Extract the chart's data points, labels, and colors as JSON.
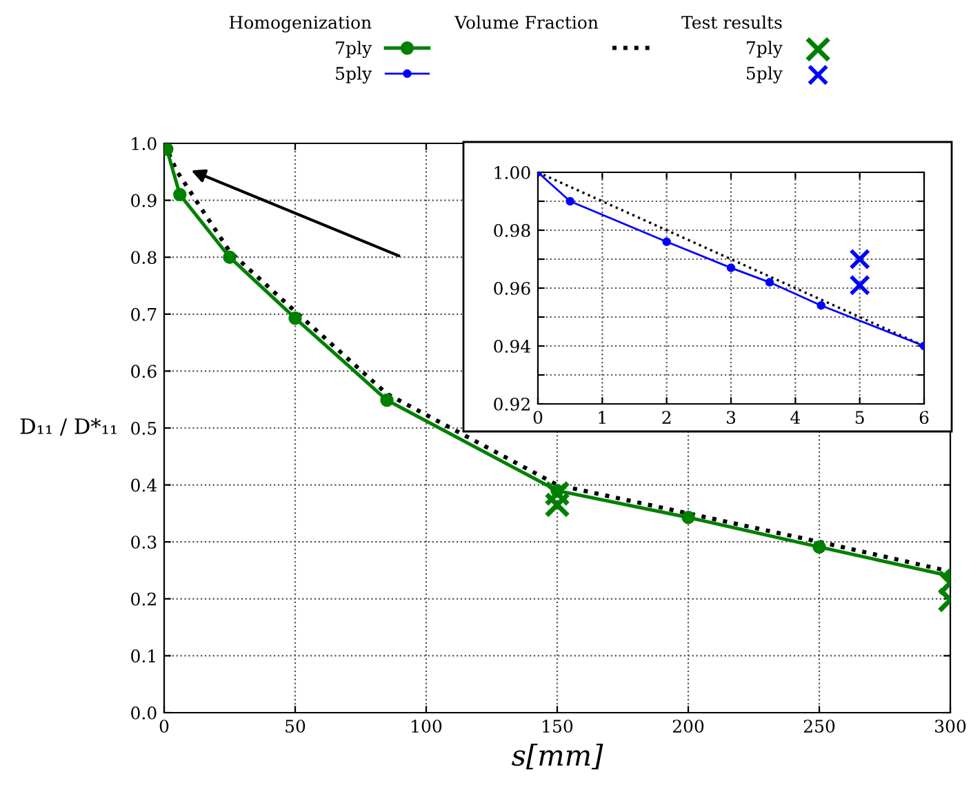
{
  "chart_data": [
    {
      "type": "line",
      "xlabel": "s[mm]",
      "ylabel": "D₁₁ / D*₁₁",
      "xlim": [
        0,
        300
      ],
      "ylim": [
        0,
        1.0
      ],
      "xticks": [
        0,
        50,
        100,
        150,
        200,
        250,
        300
      ],
      "yticks": [
        {
          "value": 0,
          "label": "0.0"
        },
        0.1,
        0.2,
        0.3,
        0.4,
        0.5,
        0.6,
        0.7,
        0.8,
        0.9,
        {
          "value": 1.0,
          "label": "1.0"
        }
      ],
      "grid": true,
      "legend": "top",
      "annotations": [
        "Homogenization",
        "Volume Fraction",
        "Test results"
      ],
      "series": [
        {
          "name": "7ply",
          "color": "#008000",
          "marker": "circle",
          "line_style": "solid",
          "x": [
            1,
            6,
            25,
            50,
            85,
            150,
            200,
            250,
            300
          ],
          "values": [
            0.99,
            0.91,
            0.8,
            0.693,
            0.549,
            0.39,
            0.343,
            0.291,
            0.24
          ]
        },
        {
          "color": "#000000",
          "marker": "none",
          "line_style": "dotted",
          "x": [
            0,
            5,
            25,
            50,
            85,
            150,
            200,
            250,
            300
          ],
          "values": [
            1.0,
            0.95,
            0.81,
            0.705,
            0.56,
            0.4,
            0.35,
            0.3,
            0.248
          ]
        },
        {
          "type": "scatter",
          "name": "7ply",
          "color": "#008000",
          "marker": "cross",
          "x": [
            150,
            150,
            300,
            300
          ],
          "values": [
            0.385,
            0.365,
            0.228,
            0.198
          ]
        }
      ]
    },
    {
      "type": "line",
      "xlim": [
        0,
        6
      ],
      "ylim": [
        0.92,
        1.0
      ],
      "xticks": [
        0,
        1,
        2,
        3,
        4,
        5,
        6
      ],
      "yticks": [
        {
          "value": 0.92,
          "label": "0.92"
        },
        {
          "value": 0.93,
          "label": null
        },
        {
          "value": 0.94,
          "label": "0.94"
        },
        {
          "value": 0.95,
          "label": null
        },
        {
          "value": 0.96,
          "label": "0.96"
        },
        {
          "value": 0.97,
          "label": null
        },
        {
          "value": 0.98,
          "label": "0.98"
        },
        {
          "value": 0.99,
          "label": null
        },
        {
          "value": 1.0,
          "label": "1.00"
        }
      ],
      "grid": true,
      "series": [
        {
          "name": "5ply",
          "color": "#0000ff",
          "marker": "circle",
          "line_style": "solid",
          "x": [
            0,
            0.5,
            2,
            3,
            3.6,
            4.4,
            6
          ],
          "values": [
            1.0,
            0.99,
            0.976,
            0.967,
            0.962,
            0.954,
            0.94
          ]
        },
        {
          "color": "#000000",
          "marker": "none",
          "line_style": "dotted",
          "x": [
            0,
            2,
            4,
            6
          ],
          "values": [
            1.0,
            0.98,
            0.96,
            0.94
          ]
        },
        {
          "type": "scatter",
          "name": "5ply",
          "color": "#0000ff",
          "marker": "cross",
          "x": [
            5,
            5
          ],
          "values": [
            0.97,
            0.961
          ]
        }
      ]
    }
  ]
}
